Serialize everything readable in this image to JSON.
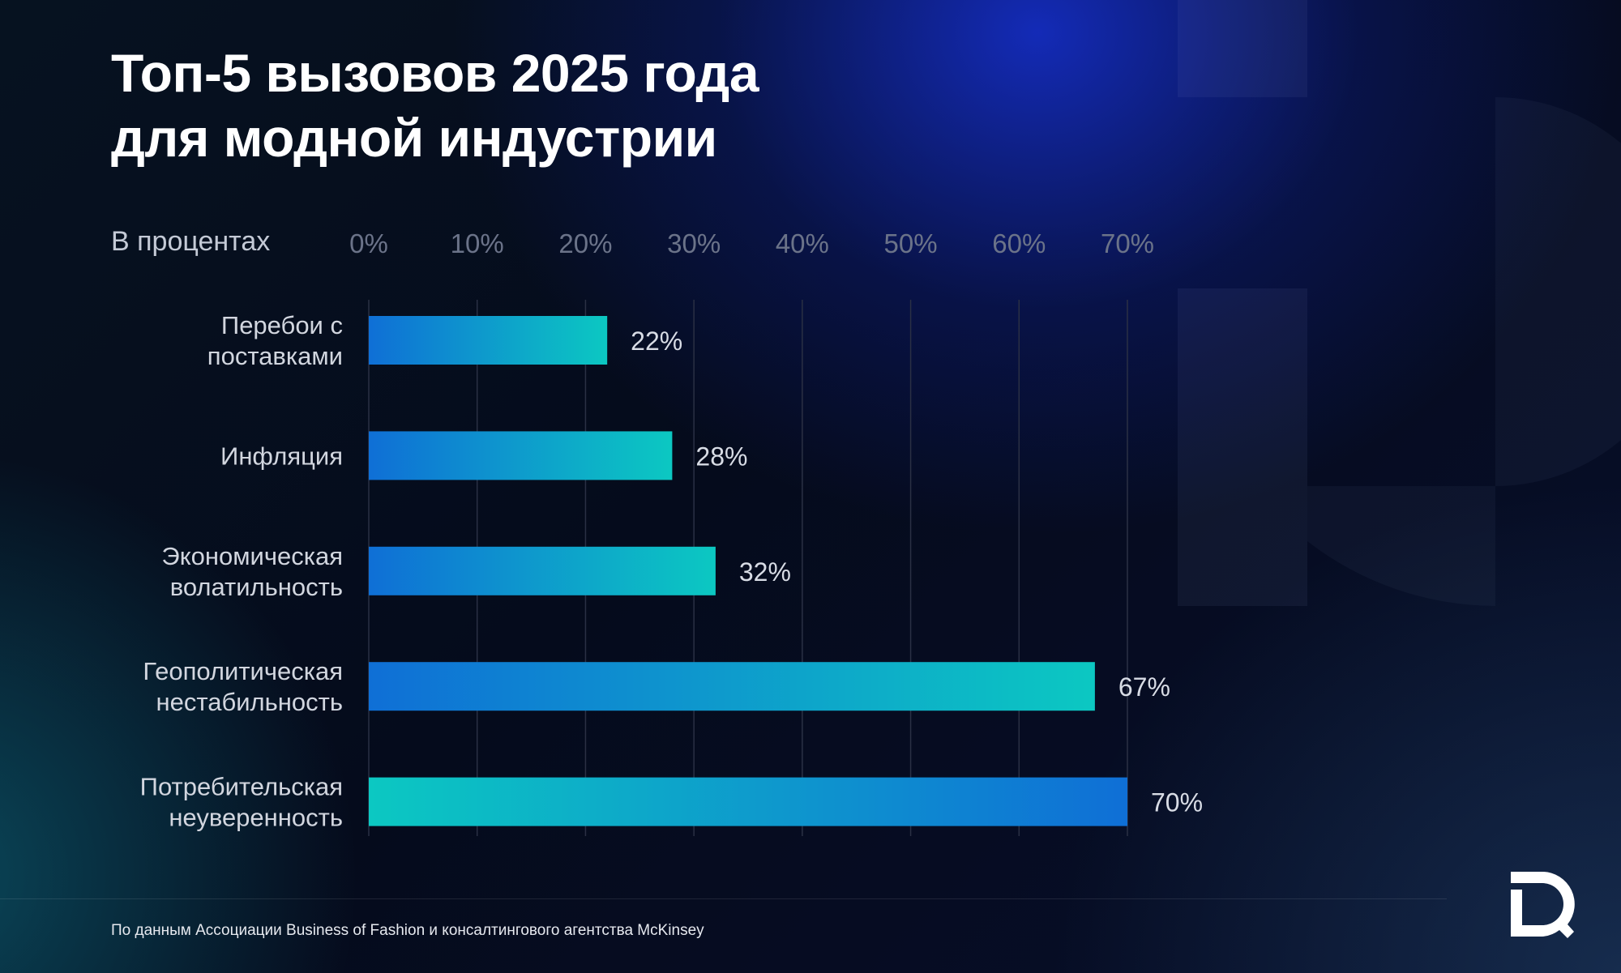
{
  "title_lines": [
    "Топ-5 вызовов 2025 года",
    "для модной индустрии"
  ],
  "unit_label": "В процентах",
  "source": "По данным Ассоциации Business of Fashion и консалтингового агентства McKinsey",
  "brand_logo_icon": "iq-logo-icon",
  "chart_data": {
    "type": "bar",
    "orientation": "horizontal",
    "title": "Топ-5 вызовов 2025 года для модной индустрии",
    "xlabel": "В процентах",
    "ylabel": "",
    "xlim": [
      0,
      70
    ],
    "x_ticks": [
      0,
      10,
      20,
      30,
      40,
      50,
      60,
      70
    ],
    "x_tick_labels": [
      "0%",
      "10%",
      "20%",
      "30%",
      "40%",
      "50%",
      "60%",
      "70%"
    ],
    "grid": true,
    "tick_label_position": "top",
    "categories": [
      [
        "Перебои с",
        "поставками"
      ],
      [
        "Инфляция"
      ],
      [
        "Экономическая",
        "волатильность"
      ],
      [
        "Геополитическая",
        "нестабильность"
      ],
      [
        "Потребительская",
        "неуверенность"
      ]
    ],
    "values": [
      22,
      28,
      32,
      67,
      70
    ],
    "value_labels": [
      "22%",
      "28%",
      "32%",
      "67%",
      "70%"
    ],
    "colors": {
      "bar_start": "#0f6fd6",
      "bar_end": "#0cc8c2",
      "highlight_reversed_gradient_index": 4,
      "tick_label": "#6b7389",
      "grid": "#2a3044",
      "category_label": "#d2d6df",
      "value_label": "#d8dce5"
    }
  }
}
